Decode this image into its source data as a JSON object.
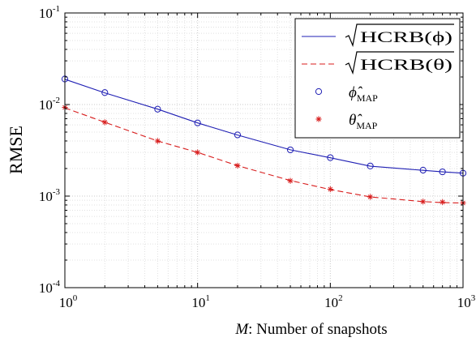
{
  "chart_data": {
    "type": "line",
    "title": "",
    "xlabel": {
      "var": "M",
      "text": ": Number of snapshots"
    },
    "ylabel": "RMSE",
    "x_scale": "log",
    "y_scale": "log",
    "xlim": [
      1,
      1000
    ],
    "ylim": [
      0.0001,
      0.1
    ],
    "grid": true,
    "legend_position": "top-right",
    "x_ticks": [
      {
        "value": 1,
        "base": "10",
        "exp": "0"
      },
      {
        "value": 10,
        "base": "10",
        "exp": "1"
      },
      {
        "value": 100,
        "base": "10",
        "exp": "2"
      },
      {
        "value": 1000,
        "base": "10",
        "exp": "3"
      }
    ],
    "y_ticks": [
      {
        "value": 0.0001,
        "base": "10",
        "exp": "-4"
      },
      {
        "value": 0.001,
        "base": "10",
        "exp": "-3"
      },
      {
        "value": 0.01,
        "base": "10",
        "exp": "-2"
      },
      {
        "value": 0.1,
        "base": "10",
        "exp": "-1"
      }
    ],
    "series": [
      {
        "name": "√HCRB(ϕ)",
        "legend": {
          "text": "HCRB(ϕ)",
          "sqrt": true
        },
        "style": "solid",
        "color": "#1f1fb4",
        "x": [
          1,
          2,
          5,
          10,
          20,
          50,
          100,
          200,
          500,
          700,
          1000
        ],
        "y": [
          0.0189,
          0.0134,
          0.0089,
          0.0063,
          0.00465,
          0.0032,
          0.00262,
          0.00212,
          0.00191,
          0.00184,
          0.00178
        ]
      },
      {
        "name": "√HCRB(θ)",
        "legend": {
          "text": "HCRB(θ)",
          "sqrt": true
        },
        "style": "dashed",
        "color": "#d81e1e",
        "x": [
          1,
          2,
          5,
          10,
          20,
          50,
          100,
          200,
          500,
          700,
          1000
        ],
        "y": [
          0.0092,
          0.0064,
          0.004,
          0.003,
          0.00215,
          0.00148,
          0.00118,
          0.00098,
          0.00087,
          0.00085,
          0.00084
        ]
      },
      {
        "name": "ϕ̂MAP",
        "legend": {
          "symbol": "ϕ̂",
          "sub": "MAP"
        },
        "style": "marker-circle",
        "color": "#1f1fb4",
        "x": [
          1,
          2,
          5,
          10,
          20,
          50,
          100,
          200,
          500,
          700,
          1000
        ],
        "y": [
          0.019,
          0.0135,
          0.0089,
          0.0063,
          0.00466,
          0.0032,
          0.00263,
          0.00213,
          0.00192,
          0.00184,
          0.00178
        ]
      },
      {
        "name": "θ̂MAP",
        "legend": {
          "symbol": "θ̂",
          "sub": "MAP"
        },
        "style": "marker-star",
        "color": "#d81e1e",
        "x": [
          1,
          2,
          5,
          10,
          20,
          50,
          100,
          200,
          500,
          700,
          1000
        ],
        "y": [
          0.0093,
          0.0064,
          0.004,
          0.003,
          0.00215,
          0.00147,
          0.00119,
          0.00098,
          0.00087,
          0.00086,
          0.00084
        ]
      }
    ]
  }
}
